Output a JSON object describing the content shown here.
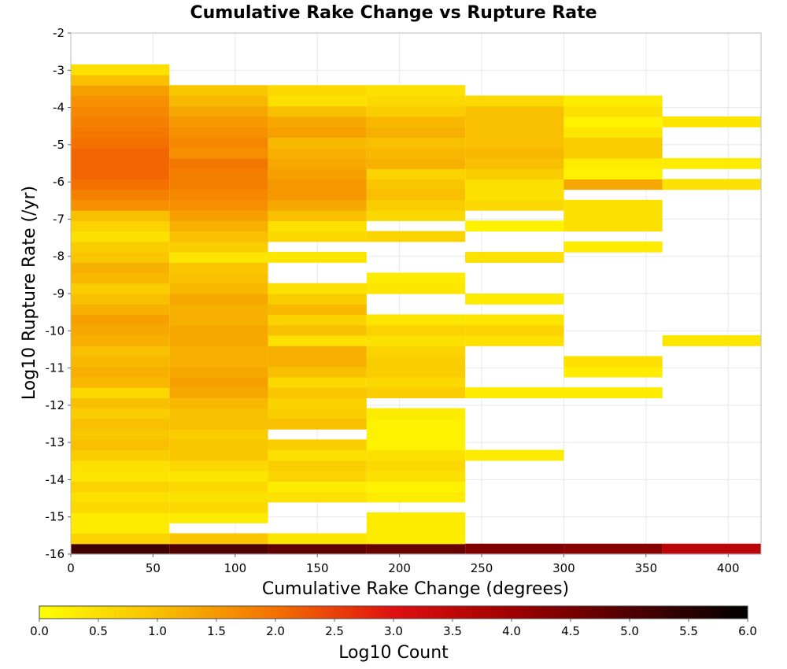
{
  "chart_data": {
    "type": "heatmap",
    "title": "Cumulative Rake Change vs Rupture Rate",
    "xlabel": "Cumulative Rake Change (degrees)",
    "ylabel": "Log10 Rupture Rate (/yr)",
    "xlim": [
      0,
      420
    ],
    "ylim": [
      -16,
      -2
    ],
    "x_ticks": [
      0,
      50,
      100,
      150,
      200,
      250,
      300,
      350,
      400
    ],
    "y_ticks": [
      -16,
      -15,
      -14,
      -13,
      -12,
      -11,
      -10,
      -9,
      -8,
      -7,
      -6,
      -5,
      -4,
      -3,
      -2
    ],
    "bin_width_x": 60,
    "bin_height_y": 0.28,
    "grid": true,
    "colorbar": {
      "label": "Log10 Count",
      "min": 0.0,
      "max": 6.0,
      "ticks": [
        "0.0",
        "0.5",
        "1.0",
        "1.5",
        "2.0",
        "2.5",
        "3.0",
        "3.5",
        "4.0",
        "4.5",
        "5.0",
        "5.5",
        "6.0"
      ],
      "colormap": [
        [
          0.0,
          "#ffff00"
        ],
        [
          1.0,
          "#f8c000"
        ],
        [
          2.0,
          "#f47000"
        ],
        [
          3.0,
          "#e01010"
        ],
        [
          4.0,
          "#a00000"
        ],
        [
          5.0,
          "#500000"
        ],
        [
          6.0,
          "#000000"
        ]
      ]
    },
    "columns": [
      {
        "x_start": 0,
        "cells": [
          [
            -16.0,
            5.2
          ],
          [
            -15.72,
            0.7
          ],
          [
            -15.44,
            0.3
          ],
          [
            -15.16,
            0.3
          ],
          [
            -14.88,
            0.6
          ],
          [
            -14.6,
            0.5
          ],
          [
            -14.32,
            0.7
          ],
          [
            -14.04,
            0.4
          ],
          [
            -13.76,
            0.5
          ],
          [
            -13.48,
            0.8
          ],
          [
            -13.2,
            1.0
          ],
          [
            -12.92,
            0.9
          ],
          [
            -12.64,
            1.0
          ],
          [
            -12.36,
            0.8
          ],
          [
            -12.08,
            1.0
          ],
          [
            -11.8,
            0.6
          ],
          [
            -11.52,
            1.1
          ],
          [
            -11.24,
            1.2
          ],
          [
            -10.96,
            1.1
          ],
          [
            -10.68,
            1.0
          ],
          [
            -10.4,
            1.2
          ],
          [
            -10.12,
            1.3
          ],
          [
            -9.84,
            1.4
          ],
          [
            -9.56,
            1.2
          ],
          [
            -9.28,
            1.0
          ],
          [
            -9.0,
            0.8
          ],
          [
            -8.72,
            1.1
          ],
          [
            -8.44,
            1.2
          ],
          [
            -8.16,
            0.9
          ],
          [
            -7.88,
            0.8
          ],
          [
            -7.6,
            0.5
          ],
          [
            -7.32,
            0.7
          ],
          [
            -7.04,
            1.0
          ],
          [
            -6.76,
            1.6
          ],
          [
            -6.48,
            1.8
          ],
          [
            -6.2,
            2.0
          ],
          [
            -5.92,
            2.1
          ],
          [
            -5.64,
            2.1
          ],
          [
            -5.36,
            2.1
          ],
          [
            -5.08,
            2.0
          ],
          [
            -4.8,
            1.9
          ],
          [
            -4.52,
            1.8
          ],
          [
            -4.24,
            1.7
          ],
          [
            -3.96,
            1.6
          ],
          [
            -3.68,
            1.4
          ],
          [
            -3.4,
            1.0
          ],
          [
            -3.12,
            0.5
          ]
        ]
      },
      {
        "x_start": 60,
        "cells": [
          [
            -16.0,
            5.0
          ],
          [
            -15.72,
            0.9
          ],
          [
            -15.16,
            0.3
          ],
          [
            -14.88,
            0.6
          ],
          [
            -14.6,
            0.5
          ],
          [
            -14.32,
            0.6
          ],
          [
            -14.04,
            0.4
          ],
          [
            -13.76,
            0.6
          ],
          [
            -13.48,
            0.9
          ],
          [
            -13.2,
            0.9
          ],
          [
            -12.92,
            0.8
          ],
          [
            -12.64,
            1.0
          ],
          [
            -12.36,
            1.0
          ],
          [
            -12.08,
            1.1
          ],
          [
            -11.8,
            1.3
          ],
          [
            -11.52,
            1.4
          ],
          [
            -11.24,
            1.3
          ],
          [
            -10.96,
            1.2
          ],
          [
            -10.68,
            1.2
          ],
          [
            -10.4,
            1.3
          ],
          [
            -10.12,
            1.3
          ],
          [
            -9.84,
            1.2
          ],
          [
            -9.56,
            1.2
          ],
          [
            -9.28,
            1.3
          ],
          [
            -9.0,
            1.1
          ],
          [
            -8.72,
            1.0
          ],
          [
            -8.44,
            0.9
          ],
          [
            -8.16,
            0.4
          ],
          [
            -7.88,
            0.8
          ],
          [
            -7.6,
            1.0
          ],
          [
            -7.32,
            1.2
          ],
          [
            -7.04,
            1.4
          ],
          [
            -6.76,
            1.6
          ],
          [
            -6.48,
            1.7
          ],
          [
            -6.2,
            1.8
          ],
          [
            -5.92,
            1.8
          ],
          [
            -5.64,
            1.9
          ],
          [
            -5.36,
            1.6
          ],
          [
            -5.08,
            1.7
          ],
          [
            -4.8,
            1.6
          ],
          [
            -4.52,
            1.5
          ],
          [
            -4.24,
            1.3
          ],
          [
            -3.96,
            1.1
          ],
          [
            -3.68,
            0.9
          ]
        ]
      },
      {
        "x_start": 120,
        "cells": [
          [
            -16.0,
            4.8
          ],
          [
            -15.72,
            0.4
          ],
          [
            -14.6,
            0.5
          ],
          [
            -14.32,
            0.3
          ],
          [
            -14.04,
            0.7
          ],
          [
            -13.76,
            0.8
          ],
          [
            -13.48,
            0.5
          ],
          [
            -13.2,
            0.8
          ],
          [
            -12.64,
            1.0
          ],
          [
            -12.36,
            0.8
          ],
          [
            -12.08,
            0.7
          ],
          [
            -11.8,
            0.9
          ],
          [
            -11.52,
            0.6
          ],
          [
            -11.24,
            1.0
          ],
          [
            -10.96,
            1.2
          ],
          [
            -10.68,
            1.2
          ],
          [
            -10.4,
            0.5
          ],
          [
            -10.12,
            1.0
          ],
          [
            -9.84,
            0.7
          ],
          [
            -9.56,
            1.1
          ],
          [
            -9.28,
            0.8
          ],
          [
            -9.0,
            0.5
          ],
          [
            -8.16,
            0.4
          ],
          [
            -7.6,
            0.6
          ],
          [
            -7.32,
            0.5
          ],
          [
            -7.04,
            1.0
          ],
          [
            -6.76,
            1.3
          ],
          [
            -6.48,
            1.5
          ],
          [
            -6.2,
            1.5
          ],
          [
            -5.92,
            1.4
          ],
          [
            -5.64,
            1.3
          ],
          [
            -5.36,
            1.2
          ],
          [
            -5.08,
            1.1
          ],
          [
            -4.8,
            1.4
          ],
          [
            -4.52,
            1.3
          ],
          [
            -4.24,
            1.0
          ],
          [
            -3.96,
            0.5
          ],
          [
            -3.68,
            0.6
          ]
        ]
      },
      {
        "x_start": 180,
        "cells": [
          [
            -16.0,
            4.7
          ],
          [
            -15.72,
            0.3
          ],
          [
            -15.44,
            0.3
          ],
          [
            -15.16,
            0.3
          ],
          [
            -14.6,
            0.3
          ],
          [
            -14.32,
            0.2
          ],
          [
            -14.04,
            0.5
          ],
          [
            -13.76,
            0.6
          ],
          [
            -13.48,
            0.5
          ],
          [
            -13.2,
            0.2
          ],
          [
            -12.92,
            0.2
          ],
          [
            -12.64,
            0.2
          ],
          [
            -12.36,
            0.3
          ],
          [
            -11.8,
            0.8
          ],
          [
            -11.52,
            0.6
          ],
          [
            -11.24,
            0.8
          ],
          [
            -10.96,
            0.8
          ],
          [
            -10.68,
            0.7
          ],
          [
            -10.4,
            0.5
          ],
          [
            -10.12,
            0.7
          ],
          [
            -9.84,
            0.4
          ],
          [
            -9.0,
            0.4
          ],
          [
            -8.72,
            0.3
          ],
          [
            -7.6,
            0.7
          ],
          [
            -7.04,
            0.6
          ],
          [
            -6.76,
            0.8
          ],
          [
            -6.48,
            1.0
          ],
          [
            -6.2,
            0.9
          ],
          [
            -5.92,
            0.7
          ],
          [
            -5.64,
            1.2
          ],
          [
            -5.36,
            1.1
          ],
          [
            -5.08,
            1.0
          ],
          [
            -4.8,
            1.2
          ],
          [
            -4.52,
            1.1
          ],
          [
            -4.24,
            0.8
          ],
          [
            -3.96,
            0.6
          ],
          [
            -3.68,
            0.5
          ]
        ]
      },
      {
        "x_start": 240,
        "cells": [
          [
            -16.0,
            4.4
          ],
          [
            -13.48,
            0.3
          ],
          [
            -11.8,
            0.3
          ],
          [
            -10.4,
            0.5
          ],
          [
            -10.12,
            0.7
          ],
          [
            -9.84,
            0.4
          ],
          [
            -9.28,
            0.3
          ],
          [
            -8.16,
            0.5
          ],
          [
            -7.32,
            0.2
          ],
          [
            -6.76,
            0.6
          ],
          [
            -6.48,
            0.5
          ],
          [
            -6.2,
            0.5
          ],
          [
            -5.92,
            0.8
          ],
          [
            -5.64,
            1.0
          ],
          [
            -5.36,
            1.1
          ],
          [
            -5.08,
            1.0
          ],
          [
            -4.8,
            1.0
          ],
          [
            -4.52,
            1.0
          ],
          [
            -4.24,
            1.0
          ],
          [
            -3.96,
            0.6
          ]
        ]
      },
      {
        "x_start": 300,
        "cells": [
          [
            -16.0,
            4.3
          ],
          [
            -11.8,
            0.3
          ],
          [
            -11.24,
            0.3
          ],
          [
            -10.96,
            0.5
          ],
          [
            -7.88,
            0.3
          ],
          [
            -7.32,
            0.5
          ],
          [
            -7.04,
            0.5
          ],
          [
            -6.76,
            0.5
          ],
          [
            -6.2,
            1.3
          ],
          [
            -5.92,
            0.2
          ],
          [
            -5.64,
            0.3
          ],
          [
            -5.36,
            0.8
          ],
          [
            -5.08,
            0.8
          ],
          [
            -4.8,
            0.4
          ],
          [
            -4.52,
            0.2
          ],
          [
            -4.24,
            0.5
          ],
          [
            -3.96,
            0.3
          ]
        ]
      },
      {
        "x_start": 360,
        "cells": [
          [
            -16.0,
            3.6
          ],
          [
            -10.4,
            0.4
          ],
          [
            -6.2,
            0.5
          ],
          [
            -5.64,
            0.3
          ],
          [
            -4.52,
            0.4
          ]
        ]
      }
    ]
  }
}
